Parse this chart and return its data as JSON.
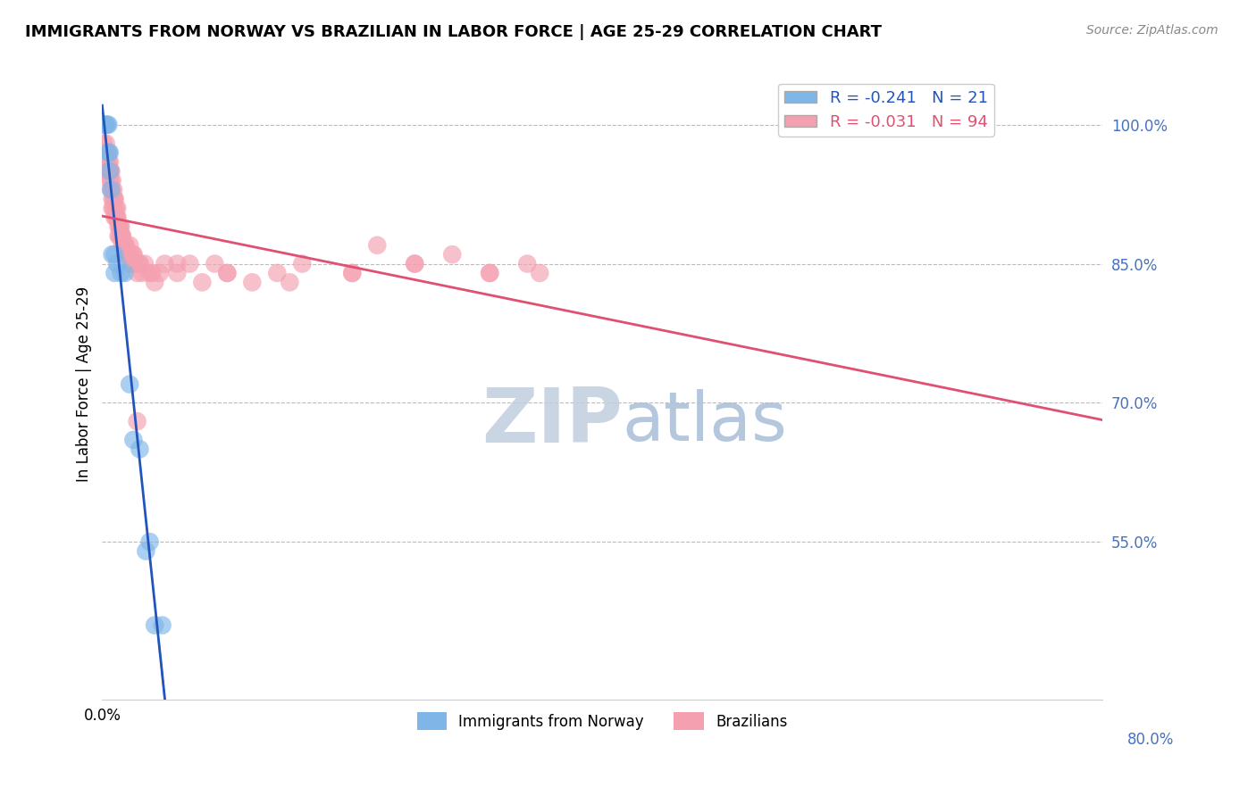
{
  "title": "IMMIGRANTS FROM NORWAY VS BRAZILIAN IN LABOR FORCE | AGE 25-29 CORRELATION CHART",
  "source": "Source: ZipAtlas.com",
  "ylabel": "In Labor Force | Age 25-29",
  "right_yticks": [
    "100.0%",
    "85.0%",
    "70.0%",
    "55.0%"
  ],
  "right_ytick_vals": [
    1.0,
    0.85,
    0.7,
    0.55
  ],
  "xmin": 0.0,
  "xmax": 0.8,
  "ymin": 0.38,
  "ymax": 1.06,
  "norway_R": -0.241,
  "norway_N": 21,
  "brazil_R": -0.031,
  "brazil_N": 94,
  "norway_color": "#7EB6E8",
  "brazil_color": "#F4A0B0",
  "norway_line_color": "#2255BB",
  "brazil_line_color": "#E05070",
  "watermark_zip": "ZIP",
  "watermark_atlas": "atlas",
  "watermark_color_zip": "#C8D4E8",
  "watermark_color_atlas": "#B8CCE8",
  "norway_x": [
    0.002,
    0.003,
    0.004,
    0.005,
    0.005,
    0.006,
    0.006,
    0.007,
    0.008,
    0.01,
    0.01,
    0.012,
    0.015,
    0.018,
    0.022,
    0.025,
    0.03,
    0.035,
    0.038,
    0.042,
    0.048
  ],
  "norway_y": [
    1.0,
    1.0,
    1.0,
    1.0,
    0.97,
    0.97,
    0.95,
    0.93,
    0.86,
    0.86,
    0.84,
    0.85,
    0.84,
    0.84,
    0.72,
    0.66,
    0.65,
    0.54,
    0.55,
    0.46,
    0.46
  ],
  "brazil_x": [
    0.001,
    0.002,
    0.002,
    0.003,
    0.003,
    0.004,
    0.004,
    0.004,
    0.005,
    0.005,
    0.005,
    0.006,
    0.006,
    0.006,
    0.007,
    0.007,
    0.007,
    0.008,
    0.008,
    0.008,
    0.009,
    0.009,
    0.01,
    0.01,
    0.01,
    0.011,
    0.011,
    0.012,
    0.012,
    0.013,
    0.013,
    0.014,
    0.014,
    0.015,
    0.015,
    0.016,
    0.016,
    0.017,
    0.018,
    0.018,
    0.019,
    0.02,
    0.021,
    0.022,
    0.023,
    0.024,
    0.025,
    0.026,
    0.028,
    0.03,
    0.032,
    0.034,
    0.038,
    0.042,
    0.046,
    0.05,
    0.06,
    0.07,
    0.08,
    0.09,
    0.1,
    0.12,
    0.14,
    0.16,
    0.2,
    0.22,
    0.25,
    0.28,
    0.31,
    0.34,
    0.002,
    0.003,
    0.005,
    0.007,
    0.008,
    0.009,
    0.01,
    0.012,
    0.014,
    0.016,
    0.018,
    0.02,
    0.022,
    0.025,
    0.03,
    0.04,
    0.06,
    0.1,
    0.15,
    0.2,
    0.25,
    0.31,
    0.028,
    0.35
  ],
  "brazil_y": [
    0.98,
    0.97,
    0.96,
    0.97,
    0.96,
    0.97,
    0.96,
    0.95,
    0.97,
    0.96,
    0.95,
    0.96,
    0.95,
    0.94,
    0.95,
    0.94,
    0.93,
    0.93,
    0.92,
    0.91,
    0.92,
    0.91,
    0.92,
    0.91,
    0.9,
    0.91,
    0.9,
    0.91,
    0.9,
    0.89,
    0.88,
    0.89,
    0.88,
    0.89,
    0.88,
    0.87,
    0.88,
    0.87,
    0.87,
    0.86,
    0.87,
    0.86,
    0.86,
    0.85,
    0.86,
    0.85,
    0.86,
    0.85,
    0.84,
    0.85,
    0.84,
    0.85,
    0.84,
    0.83,
    0.84,
    0.85,
    0.84,
    0.85,
    0.83,
    0.85,
    0.84,
    0.83,
    0.84,
    0.85,
    0.84,
    0.87,
    0.85,
    0.86,
    0.84,
    0.85,
    1.0,
    0.98,
    0.96,
    0.95,
    0.94,
    0.93,
    0.92,
    0.9,
    0.89,
    0.88,
    0.87,
    0.86,
    0.87,
    0.86,
    0.85,
    0.84,
    0.85,
    0.84,
    0.83,
    0.84,
    0.85,
    0.84,
    0.68,
    0.84
  ]
}
